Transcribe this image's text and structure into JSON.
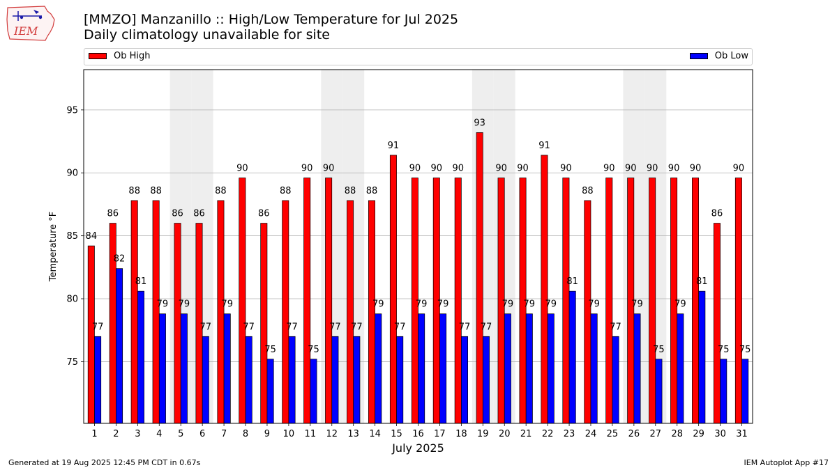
{
  "header": {
    "title": "[MMZO] Manzanillo :: High/Low Temperature for Jul 2025",
    "subtitle": "Daily climatology unavailable for site",
    "logo_text": "IEM"
  },
  "legend": {
    "high_label": "Ob High",
    "low_label": "Ob Low"
  },
  "footer": {
    "generated": "Generated at 19 Aug 2025 12:45 PM CDT in 0.67s",
    "app": "IEM Autoplot App #17"
  },
  "colors": {
    "high": "#ff0000",
    "low": "#0000ff",
    "weekend_band": "#eeeeee",
    "grid": "#b0b0b0"
  },
  "chart_data": {
    "type": "bar",
    "xlabel": "July 2025",
    "ylabel": "Temperature °F",
    "ylim": [
      70.1,
      98.2
    ],
    "yticks": [
      75,
      80,
      85,
      90,
      95
    ],
    "grid": "horizontal",
    "legend_position": "top",
    "categories": [
      "1",
      "2",
      "3",
      "4",
      "5",
      "6",
      "7",
      "8",
      "9",
      "10",
      "11",
      "12",
      "13",
      "14",
      "15",
      "16",
      "17",
      "18",
      "19",
      "20",
      "21",
      "22",
      "23",
      "24",
      "25",
      "26",
      "27",
      "28",
      "29",
      "30",
      "31"
    ],
    "shaded_days": [
      5,
      6,
      12,
      13,
      19,
      20,
      26,
      27
    ],
    "series": [
      {
        "name": "Ob High",
        "color": "#ff0000",
        "values": [
          84.2,
          86.0,
          87.8,
          87.8,
          86.0,
          86.0,
          87.8,
          89.6,
          86.0,
          87.8,
          89.6,
          89.6,
          87.8,
          87.8,
          91.4,
          89.6,
          89.6,
          89.6,
          93.2,
          89.6,
          89.6,
          91.4,
          89.6,
          87.8,
          89.6,
          89.6,
          89.6,
          89.6,
          89.6,
          86.0,
          89.6
        ],
        "labels": [
          "84",
          "86",
          "88",
          "88",
          "86",
          "86",
          "88",
          "90",
          "86",
          "88",
          "90",
          "90",
          "88",
          "88",
          "91",
          "90",
          "90",
          "90",
          "93",
          "90",
          "90",
          "91",
          "90",
          "88",
          "90",
          "90",
          "90",
          "90",
          "90",
          "86",
          "90"
        ]
      },
      {
        "name": "Ob Low",
        "color": "#0000ff",
        "values": [
          77.0,
          82.4,
          80.6,
          78.8,
          78.8,
          77.0,
          78.8,
          77.0,
          75.2,
          77.0,
          75.2,
          77.0,
          77.0,
          78.8,
          77.0,
          78.8,
          78.8,
          77.0,
          77.0,
          78.8,
          78.8,
          78.8,
          80.6,
          78.8,
          77.0,
          78.8,
          75.2,
          78.8,
          80.6,
          75.2,
          75.2
        ],
        "labels": [
          "77",
          "82",
          "81",
          "79",
          "79",
          "77",
          "79",
          "77",
          "75",
          "77",
          "75",
          "77",
          "77",
          "79",
          "77",
          "79",
          "79",
          "77",
          "77",
          "79",
          "79",
          "79",
          "81",
          "79",
          "77",
          "79",
          "75",
          "79",
          "81",
          "75",
          "75"
        ]
      }
    ]
  }
}
